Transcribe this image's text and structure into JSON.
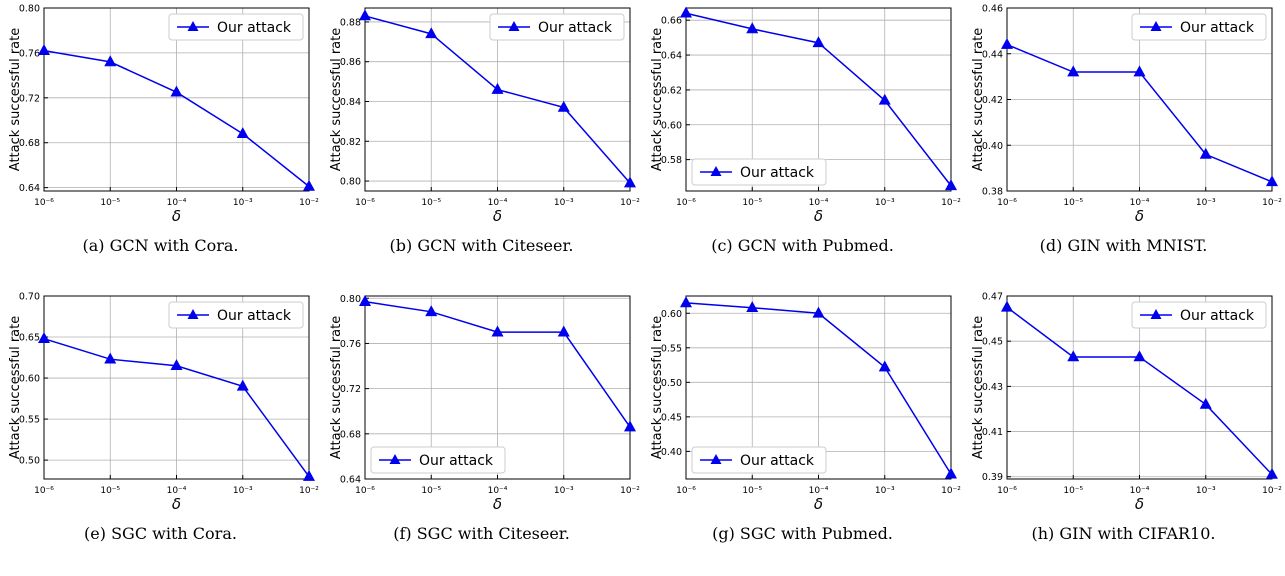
{
  "figure": {
    "panels": [
      {
        "caption": "(a)  GCN with Cora."
      },
      {
        "caption": "(b)  GCN with Citeseer."
      },
      {
        "caption": "(c)  GCN with Pubmed."
      },
      {
        "caption": "(d)  GIN with MNIST."
      },
      {
        "caption": "(e)  SGC with Cora."
      },
      {
        "caption": "(f)  SGC with Citeseer."
      },
      {
        "caption": "(g)  SGC with Pubmed."
      },
      {
        "caption": "(h)  GIN with CIFAR10."
      }
    ]
  },
  "chart_data": [
    {
      "type": "line",
      "xscale": "log",
      "xlabel": "δ",
      "ylabel": "Attack successful rate",
      "x": [
        "10⁻⁶",
        "10⁻⁵",
        "10⁻⁴",
        "10⁻³",
        "10⁻²"
      ],
      "series": [
        {
          "name": "Our attack",
          "values": [
            0.762,
            0.752,
            0.725,
            0.688,
            0.641
          ]
        }
      ],
      "ylim": [
        0.637,
        0.8
      ],
      "yticks": [
        "0.64",
        "0.68",
        "0.72",
        "0.76",
        "0.80"
      ],
      "legend": "top-right",
      "grid": true,
      "color": "#0000ee"
    },
    {
      "type": "line",
      "xscale": "log",
      "xlabel": "δ",
      "ylabel": "Attack successful rate",
      "x": [
        "10⁻⁶",
        "10⁻⁵",
        "10⁻⁴",
        "10⁻³",
        "10⁻²"
      ],
      "series": [
        {
          "name": "Our attack",
          "values": [
            0.883,
            0.874,
            0.846,
            0.837,
            0.799
          ]
        }
      ],
      "ylim": [
        0.795,
        0.887
      ],
      "yticks": [
        "0.80",
        "0.82",
        "0.84",
        "0.86",
        "0.88"
      ],
      "legend": "top-right",
      "grid": true,
      "color": "#0000ee"
    },
    {
      "type": "line",
      "xscale": "log",
      "xlabel": "δ",
      "ylabel": "Attack successful rate",
      "x": [
        "10⁻⁶",
        "10⁻⁵",
        "10⁻⁴",
        "10⁻³",
        "10⁻²"
      ],
      "series": [
        {
          "name": "Our attack",
          "values": [
            0.664,
            0.655,
            0.647,
            0.614,
            0.565
          ]
        }
      ],
      "ylim": [
        0.562,
        0.667
      ],
      "yticks": [
        "0.58",
        "0.60",
        "0.62",
        "0.64",
        "0.66"
      ],
      "legend": "bottom-left",
      "grid": true,
      "color": "#0000ee"
    },
    {
      "type": "line",
      "xscale": "log",
      "xlabel": "δ",
      "ylabel": "Attack successful rate",
      "x": [
        "10⁻⁶",
        "10⁻⁵",
        "10⁻⁴",
        "10⁻³",
        "10⁻²"
      ],
      "series": [
        {
          "name": "Our attack",
          "values": [
            0.444,
            0.432,
            0.432,
            0.396,
            0.384
          ]
        }
      ],
      "ylim": [
        0.38,
        0.46
      ],
      "yticks": [
        "0.38",
        "0.40",
        "0.42",
        "0.44",
        "0.46"
      ],
      "legend": "top-right",
      "grid": true,
      "color": "#0000ee"
    },
    {
      "type": "line",
      "xscale": "log",
      "xlabel": "δ",
      "ylabel": "Attack successful rate",
      "x": [
        "10⁻⁶",
        "10⁻⁵",
        "10⁻⁴",
        "10⁻³",
        "10⁻²"
      ],
      "series": [
        {
          "name": "Our attack",
          "values": [
            0.648,
            0.623,
            0.615,
            0.59,
            0.48
          ]
        }
      ],
      "ylim": [
        0.477,
        0.7
      ],
      "yticks": [
        "0.50",
        "0.55",
        "0.60",
        "0.65",
        "0.70"
      ],
      "legend": "top-right",
      "grid": true,
      "color": "#0000ee"
    },
    {
      "type": "line",
      "xscale": "log",
      "xlabel": "δ",
      "ylabel": "Attack successful rate",
      "x": [
        "10⁻⁶",
        "10⁻⁵",
        "10⁻⁴",
        "10⁻³",
        "10⁻²"
      ],
      "series": [
        {
          "name": "Our attack",
          "values": [
            0.797,
            0.788,
            0.77,
            0.77,
            0.686
          ]
        }
      ],
      "ylim": [
        0.64,
        0.802
      ],
      "yticks": [
        "0.64",
        "0.68",
        "0.72",
        "0.76",
        "0.80"
      ],
      "legend": "bottom-left",
      "grid": true,
      "color": "#0000ee"
    },
    {
      "type": "line",
      "xscale": "log",
      "xlabel": "δ",
      "ylabel": "Attack successful rate",
      "x": [
        "10⁻⁶",
        "10⁻⁵",
        "10⁻⁴",
        "10⁻³",
        "10⁻²"
      ],
      "series": [
        {
          "name": "Our attack",
          "values": [
            0.615,
            0.608,
            0.6,
            0.522,
            0.367
          ]
        }
      ],
      "ylim": [
        0.36,
        0.625
      ],
      "yticks": [
        "0.40",
        "0.45",
        "0.50",
        "0.55",
        "0.60"
      ],
      "legend": "bottom-left",
      "grid": true,
      "color": "#0000ee"
    },
    {
      "type": "line",
      "xscale": "log",
      "xlabel": "δ",
      "ylabel": "Attack successful rate",
      "x": [
        "10⁻⁶",
        "10⁻⁵",
        "10⁻⁴",
        "10⁻³",
        "10⁻²"
      ],
      "series": [
        {
          "name": "Our attack",
          "values": [
            0.465,
            0.443,
            0.443,
            0.422,
            0.391
          ]
        }
      ],
      "ylim": [
        0.389,
        0.47
      ],
      "yticks": [
        "0.39",
        "0.41",
        "0.43",
        "0.45",
        "0.47"
      ],
      "legend": "top-right",
      "grid": true,
      "color": "#0000ee"
    }
  ]
}
